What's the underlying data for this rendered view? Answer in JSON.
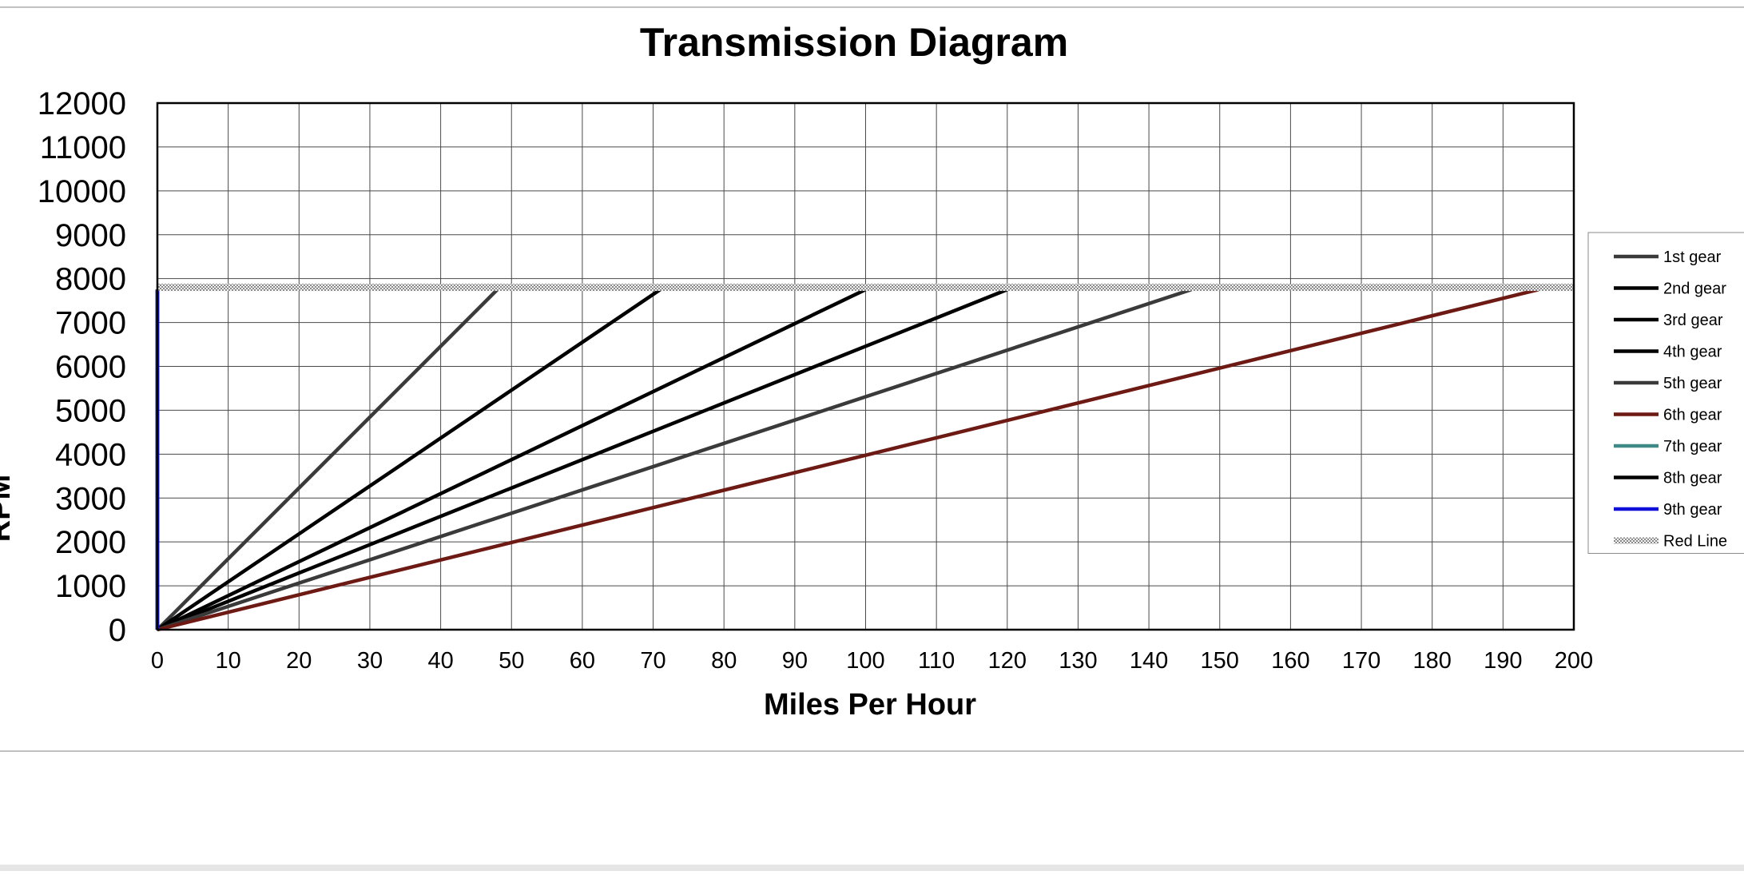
{
  "chart_data": {
    "type": "line",
    "title": "Transmission Diagram",
    "xlabel": "Miles Per Hour",
    "ylabel": "RPM",
    "xlim": [
      0,
      200
    ],
    "ylim": [
      0,
      12000
    ],
    "x_ticks": [
      0,
      10,
      20,
      30,
      40,
      50,
      60,
      70,
      80,
      90,
      100,
      110,
      120,
      130,
      140,
      150,
      160,
      170,
      180,
      190,
      200
    ],
    "y_ticks": [
      0,
      1000,
      2000,
      3000,
      4000,
      5000,
      6000,
      7000,
      8000,
      9000,
      10000,
      11000,
      12000
    ],
    "grid": true,
    "legend_position": "right",
    "series": [
      {
        "name": "1st gear",
        "color": "#3a3a3a",
        "x": [
          0,
          48
        ],
        "y": [
          0,
          7750
        ]
      },
      {
        "name": "2nd gear",
        "color": "#000000",
        "x": [
          0,
          71
        ],
        "y": [
          0,
          7750
        ]
      },
      {
        "name": "3rd gear",
        "color": "#000000",
        "x": [
          0,
          100
        ],
        "y": [
          0,
          7750
        ]
      },
      {
        "name": "4th gear",
        "color": "#000000",
        "x": [
          0,
          120
        ],
        "y": [
          0,
          7750
        ]
      },
      {
        "name": "5th gear",
        "color": "#3a3a3a",
        "x": [
          0,
          146
        ],
        "y": [
          0,
          7750
        ]
      },
      {
        "name": "6th gear",
        "color": "#6e1a14",
        "x": [
          0,
          195
        ],
        "y": [
          0,
          7750
        ]
      },
      {
        "name": "7th gear",
        "color": "#3f8a86",
        "x": [
          0,
          0
        ],
        "y": [
          0,
          7750
        ]
      },
      {
        "name": "8th gear",
        "color": "#000000",
        "x": [
          0,
          0
        ],
        "y": [
          0,
          7750
        ]
      },
      {
        "name": "9th gear",
        "color": "#1010d8",
        "x": [
          0,
          0
        ],
        "y": [
          0,
          7750
        ]
      },
      {
        "name": "Red Line",
        "color": "#9a9a9a",
        "pattern": "checker",
        "x": [
          0,
          200
        ],
        "y": [
          7800,
          7800
        ]
      }
    ]
  }
}
